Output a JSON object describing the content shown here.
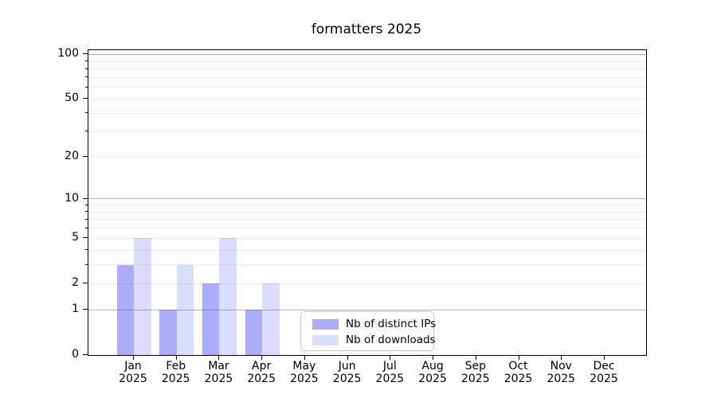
{
  "chart_data": {
    "type": "bar",
    "title": "formatters 2025",
    "categories": [
      "Jan",
      "Feb",
      "Mar",
      "Apr",
      "May",
      "Jun",
      "Jul",
      "Aug",
      "Sep",
      "Oct",
      "Nov",
      "Dec"
    ],
    "x_year": "2025",
    "series": [
      {
        "name": "Nb of distinct IPs",
        "color": "rgba(90,90,240,0.5)",
        "color_hex_on_white": "#aaaaf7",
        "values": [
          3,
          1,
          2,
          1,
          0,
          0,
          0,
          0,
          0,
          0,
          0,
          0
        ]
      },
      {
        "name": "Nb of downloads",
        "color": "rgba(90,90,240,0.21)",
        "color_hex_on_white": "#dcdcfc",
        "values": [
          5,
          3,
          5,
          2,
          0,
          0,
          0,
          0,
          0,
          0,
          0,
          0
        ]
      }
    ],
    "y_scale": "log1p",
    "ylim": [
      0,
      107
    ],
    "y_tick_labels": [
      0,
      1,
      2,
      5,
      10,
      20,
      50,
      100
    ],
    "y_major_gridlines": [
      1,
      10,
      100
    ],
    "y_minor_gridlines": [
      2,
      3,
      4,
      5,
      6,
      7,
      8,
      9,
      20,
      30,
      40,
      50,
      60,
      70,
      80,
      90
    ],
    "grid": true,
    "legend_position": "lower center",
    "colors": {
      "grid_major": "#b3b3b3",
      "grid_minor": "#e8e8e8",
      "axis": "#000000",
      "legend_border": "#cccccc"
    }
  }
}
